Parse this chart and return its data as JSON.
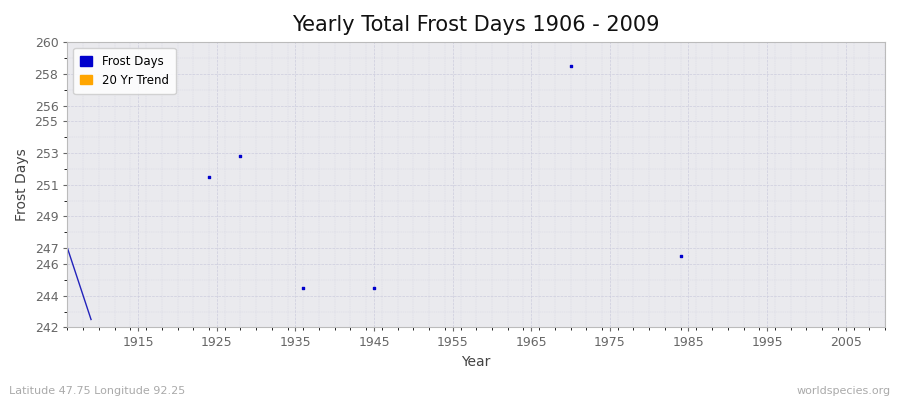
{
  "title": "Yearly Total Frost Days 1906 - 2009",
  "xlabel": "Year",
  "ylabel": "Frost Days",
  "fig_facecolor": "#ffffff",
  "plot_bg_color": "#eaeaee",
  "ylim": [
    242,
    260
  ],
  "xlim": [
    1906,
    2010
  ],
  "yticks": [
    242,
    244,
    246,
    247,
    249,
    251,
    253,
    255,
    256,
    258,
    260
  ],
  "xticks": [
    1915,
    1925,
    1935,
    1945,
    1955,
    1965,
    1975,
    1985,
    1995,
    2005
  ],
  "frost_days_x": [
    1924,
    1928,
    1936,
    1945,
    1970,
    1984
  ],
  "frost_days_y": [
    251.5,
    252.8,
    244.5,
    244.5,
    258.5,
    246.5
  ],
  "trend_x": [
    1906,
    1909
  ],
  "trend_y": [
    247.0,
    242.5
  ],
  "trend_line_color": "#2222bb",
  "frost_color": "#0000cc",
  "grid_color": "#ccccdd",
  "text_color": "#444444",
  "tick_color": "#666666",
  "title_fontsize": 15,
  "axis_fontsize": 10,
  "tick_fontsize": 9,
  "subtitle_left": "Latitude 47.75 Longitude 92.25",
  "subtitle_right": "worldspecies.org",
  "legend_labels": [
    "Frost Days",
    "20 Yr Trend"
  ],
  "legend_colors": [
    "#0000cc",
    "#ffa500"
  ]
}
